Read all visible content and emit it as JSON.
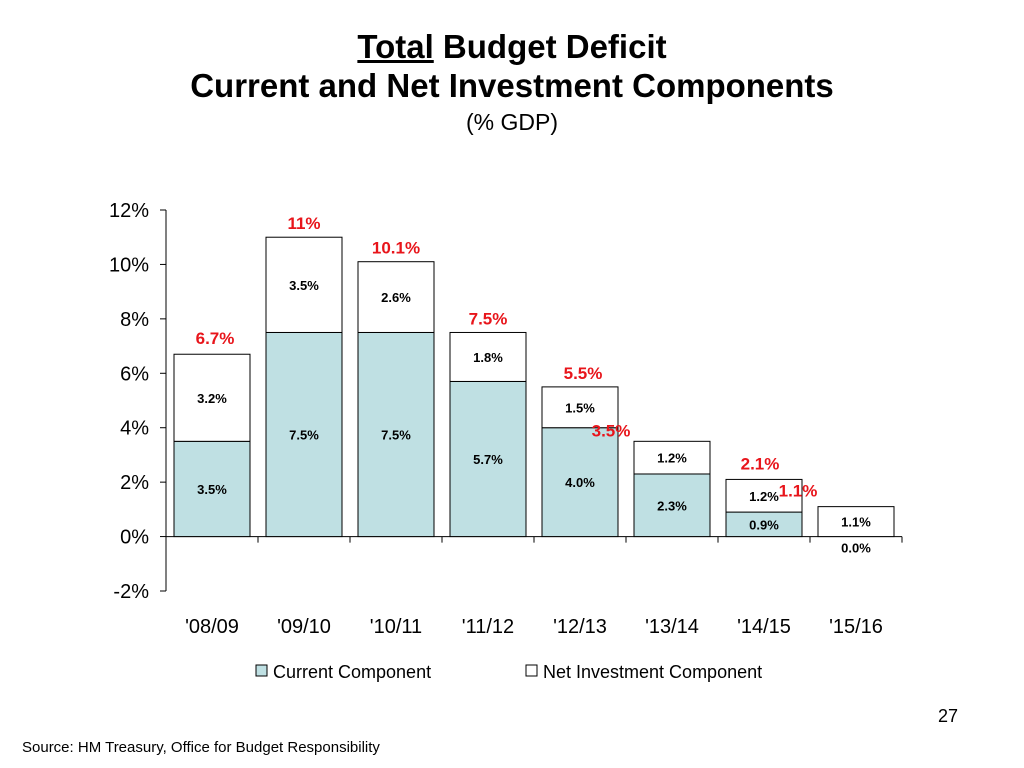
{
  "slide": {
    "title_underlined": "Total",
    "title_rest": " Budget Deficit",
    "title_line2": "Current and Net Investment Components",
    "subtitle": "(% GDP)",
    "source": "Source: HM Treasury, Office for Budget Responsibility",
    "page_number": "27"
  },
  "chart_data": {
    "type": "bar",
    "stacked": true,
    "categories": [
      "'08/09",
      "'09/10",
      "'10/11",
      "'11/12",
      "'12/13",
      "'13/14",
      "'14/15",
      "'15/16"
    ],
    "series": [
      {
        "name": "Current Component",
        "values": [
          3.5,
          7.5,
          7.5,
          5.7,
          4.0,
          2.3,
          0.9,
          0.0
        ],
        "labels": [
          "3.5%",
          "7.5%",
          "7.5%",
          "5.7%",
          "4.0%",
          "2.3%",
          "0.9%",
          "0.0%"
        ],
        "color": "#bfe0e3"
      },
      {
        "name": "Net Investment Component",
        "values": [
          3.2,
          3.5,
          2.6,
          1.8,
          1.5,
          1.2,
          1.2,
          1.1
        ],
        "labels": [
          "3.2%",
          "3.5%",
          "2.6%",
          "1.8%",
          "1.5%",
          "1.2%",
          "1.2%",
          "1.1%"
        ],
        "color": "#ffffff"
      }
    ],
    "totals": [
      6.7,
      11,
      10.1,
      7.5,
      5.5,
      3.5,
      2.1,
      1.1
    ],
    "total_labels": [
      "6.7%",
      "11%",
      "10.1%",
      "7.5%",
      "5.5%",
      "3.5%",
      "2.1%",
      "1.1%"
    ],
    "total_label_color": "#e8151b",
    "ylim": [
      -2,
      12
    ],
    "yticks": [
      -2,
      0,
      2,
      4,
      6,
      8,
      10,
      12
    ],
    "ytick_labels": [
      "-2%",
      "0%",
      "2%",
      "4%",
      "6%",
      "8%",
      "10%",
      "12%"
    ],
    "grid": false,
    "legend": "bottom"
  }
}
